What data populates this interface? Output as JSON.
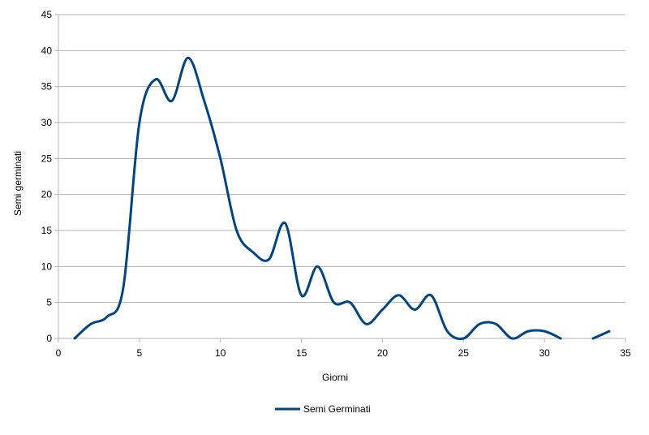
{
  "chart_data": {
    "type": "line",
    "title": "",
    "xlabel": "Giorni",
    "ylabel": "Semi germinati",
    "xlim": [
      0,
      35
    ],
    "ylim": [
      0,
      45
    ],
    "xticks": [
      0,
      5,
      10,
      15,
      20,
      25,
      30,
      35
    ],
    "yticks": [
      0,
      5,
      10,
      15,
      20,
      25,
      30,
      35,
      40,
      45
    ],
    "grid": "horizontal",
    "legend": "bottom",
    "series": [
      {
        "name": "Semi Germinati",
        "color": "#004586",
        "x": [
          1,
          2,
          3,
          4,
          5,
          6,
          7,
          8,
          9,
          10,
          11,
          12,
          13,
          14,
          15,
          16,
          17,
          18,
          19,
          20,
          21,
          22,
          23,
          24,
          25,
          26,
          27,
          28,
          29,
          30,
          31,
          32,
          33,
          34
        ],
        "y": [
          0,
          2,
          3,
          7,
          30,
          36,
          33,
          39,
          33,
          25,
          15,
          12,
          11,
          16,
          6,
          10,
          5,
          5,
          2,
          4,
          6,
          4,
          6,
          1,
          0,
          2,
          2,
          0,
          1,
          1,
          0,
          null,
          0,
          1
        ]
      }
    ]
  }
}
